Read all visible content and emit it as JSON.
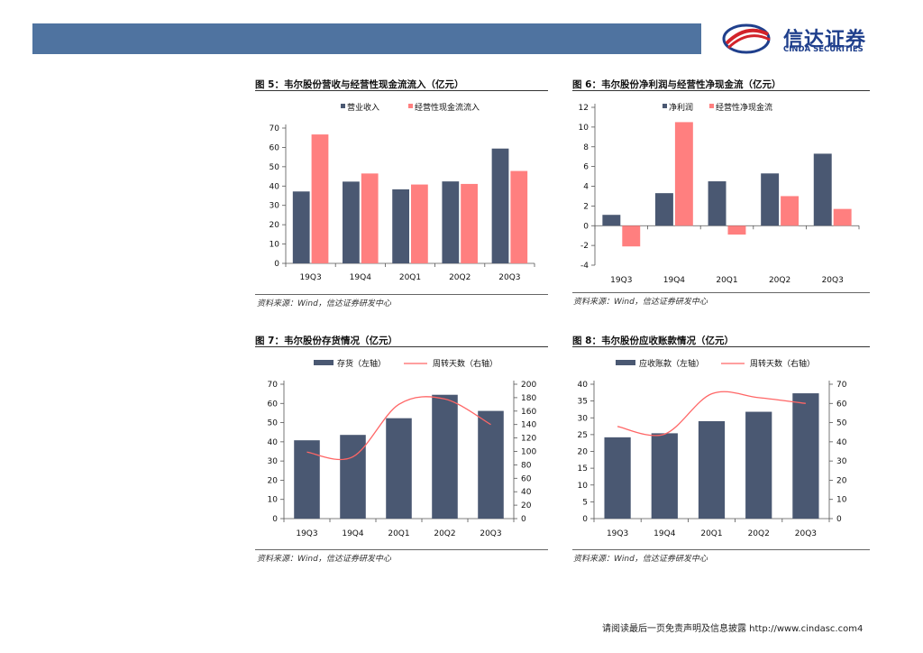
{
  "header": {
    "logo_cn": "信达证券",
    "logo_en": "CINDA SECURITIES"
  },
  "colors": {
    "dark": "#4a5872",
    "pink": "#ff7f7f",
    "line": "#ff6666",
    "header": "#4f73a0"
  },
  "panels": [
    {
      "title": "图 5：韦尔股份营收与经营性现金流流入（亿元）",
      "source": "资料来源：Wind，信达证券研发中心",
      "chart_data": {
        "type": "bar",
        "categories": [
          "19Q3",
          "19Q4",
          "20Q1",
          "20Q2",
          "20Q3"
        ],
        "series": [
          {
            "name": "营业收入",
            "values": [
              37.2,
              42.3,
              38.3,
              42.4,
              59.4
            ]
          },
          {
            "name": "经营性现金流流入",
            "values": [
              66.7,
              46.5,
              40.8,
              41.1,
              47.8
            ]
          }
        ],
        "ylim": [
          0,
          70
        ],
        "yticks": [
          0,
          10,
          20,
          30,
          40,
          50,
          60,
          70
        ],
        "legend_position": "top"
      }
    },
    {
      "title": "图 6：韦尔股份净利润与经营性净现金流（亿元）",
      "source": "资料来源：Wind，信达证券研发中心",
      "chart_data": {
        "type": "bar",
        "categories": [
          "19Q3",
          "19Q4",
          "20Q1",
          "20Q2",
          "20Q3"
        ],
        "series": [
          {
            "name": "净利润",
            "values": [
              1.1,
              3.3,
              4.5,
              5.3,
              7.3
            ]
          },
          {
            "name": "经营性净现金流",
            "values": [
              -2.1,
              10.5,
              -0.9,
              3.0,
              1.7
            ]
          }
        ],
        "ylim": [
          -4,
          12
        ],
        "yticks": [
          -4,
          -2,
          0,
          2,
          4,
          6,
          8,
          10,
          12
        ],
        "legend_position": "top"
      }
    },
    {
      "title": "图 7：韦尔股份存货情况（亿元）",
      "source": "资料来源：Wind，信达证券研发中心",
      "chart_data": {
        "type": "bar+line",
        "categories": [
          "19Q3",
          "19Q4",
          "20Q1",
          "20Q2",
          "20Q3"
        ],
        "series": [
          {
            "name": "存货（左轴）",
            "values": [
              40.8,
              43.6,
              52.3,
              64.5,
              56.1
            ],
            "axis": "left"
          },
          {
            "name": "周转天数（右轴）",
            "values": [
              99,
              92,
              170,
              178,
              140
            ],
            "axis": "right"
          }
        ],
        "ylim": [
          0,
          70
        ],
        "yticks": [
          0,
          10,
          20,
          30,
          40,
          50,
          60,
          70
        ],
        "y2lim": [
          0,
          200
        ],
        "y2ticks": [
          0,
          20,
          40,
          60,
          80,
          100,
          120,
          140,
          160,
          180,
          200
        ],
        "legend_position": "top"
      }
    },
    {
      "title": "图 8：韦尔股份应收账款情况（亿元）",
      "source": "资料来源：Wind，信达证券研发中心",
      "chart_data": {
        "type": "bar+line",
        "categories": [
          "19Q3",
          "19Q4",
          "20Q1",
          "20Q2",
          "20Q3"
        ],
        "series": [
          {
            "name": "应收账款（左轴）",
            "values": [
              24.2,
              25.4,
              29.0,
              31.8,
              37.3
            ],
            "axis": "left"
          },
          {
            "name": "周转天数（右轴）",
            "values": [
              48,
              44,
              65,
              63,
              60
            ],
            "axis": "right"
          }
        ],
        "ylim": [
          0,
          40
        ],
        "yticks": [
          0,
          5,
          10,
          15,
          20,
          25,
          30,
          35,
          40
        ],
        "y2lim": [
          0,
          70
        ],
        "y2ticks": [
          0,
          10,
          20,
          30,
          40,
          50,
          60,
          70
        ],
        "legend_position": "top"
      }
    }
  ],
  "footer": {
    "text": "请阅读最后一页免责声明及信息披露 http://www.cindasc.com",
    "page": "4"
  }
}
